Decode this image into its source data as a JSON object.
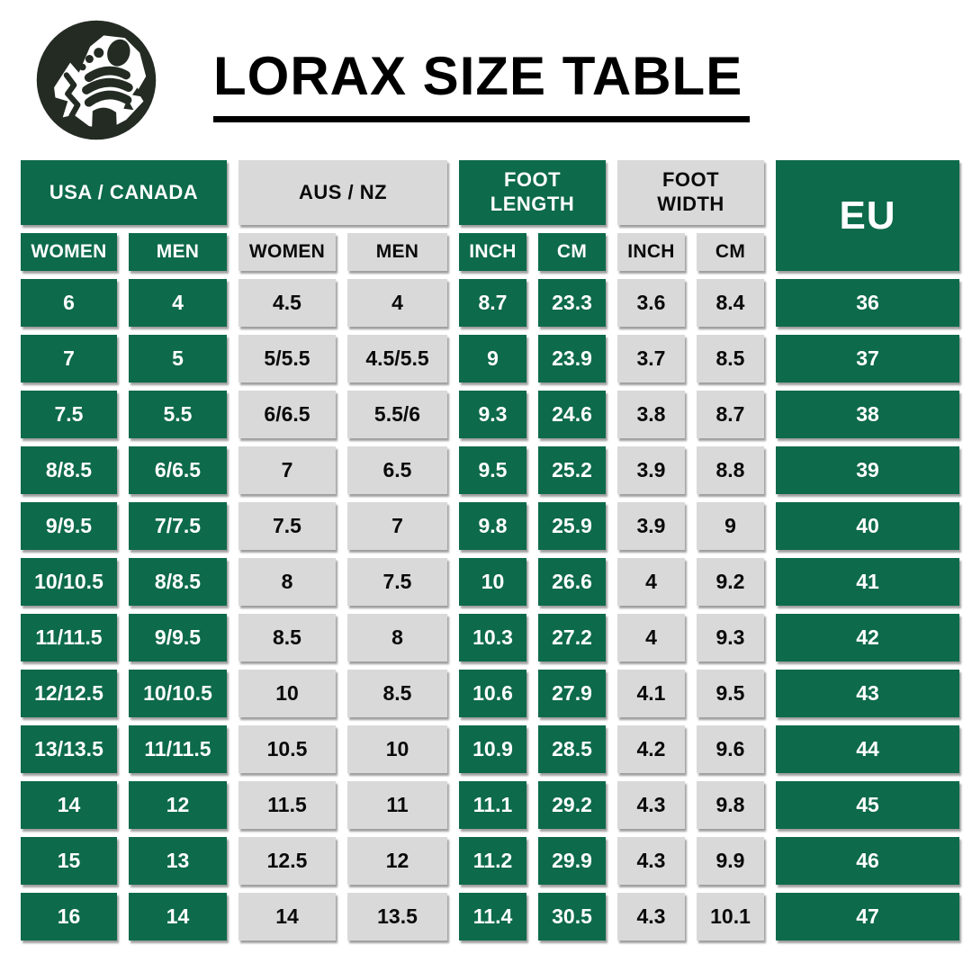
{
  "header": {
    "title": "LORAX SIZE TABLE",
    "logo_icon": "footprint-mountain-icon"
  },
  "colors": {
    "green": "#0D6A4A",
    "light_gray": "#D9D9D9",
    "logo_dark": "#232B23",
    "title_text": "#000000",
    "text_on_green": "#FFFFFF",
    "text_on_gray": "#0A0A0A"
  },
  "table": {
    "groups": [
      {
        "label": "USA / CANADA",
        "style": "green"
      },
      {
        "label": "AUS / NZ",
        "style": "gray"
      },
      {
        "label": "FOOT LENGTH",
        "style": "green"
      },
      {
        "label": "FOOT WIDTH",
        "style": "gray"
      },
      {
        "label": "EU",
        "style": "green"
      }
    ],
    "subheaders": [
      {
        "label": "WOMEN",
        "style": "green"
      },
      {
        "label": "MEN",
        "style": "green"
      },
      {
        "label": "WOMEN",
        "style": "gray"
      },
      {
        "label": "MEN",
        "style": "gray"
      },
      {
        "label": "INCH",
        "style": "green"
      },
      {
        "label": "CM",
        "style": "green"
      },
      {
        "label": "INCH",
        "style": "gray"
      },
      {
        "label": "CM",
        "style": "gray"
      }
    ],
    "column_styles": [
      "green",
      "green",
      "gray",
      "gray",
      "green",
      "green",
      "gray",
      "gray",
      "green"
    ],
    "rows": [
      [
        "6",
        "4",
        "4.5",
        "4",
        "8.7",
        "23.3",
        "3.6",
        "8.4",
        "36"
      ],
      [
        "7",
        "5",
        "5/5.5",
        "4.5/5.5",
        "9",
        "23.9",
        "3.7",
        "8.5",
        "37"
      ],
      [
        "7.5",
        "5.5",
        "6/6.5",
        "5.5/6",
        "9.3",
        "24.6",
        "3.8",
        "8.7",
        "38"
      ],
      [
        "8/8.5",
        "6/6.5",
        "7",
        "6.5",
        "9.5",
        "25.2",
        "3.9",
        "8.8",
        "39"
      ],
      [
        "9/9.5",
        "7/7.5",
        "7.5",
        "7",
        "9.8",
        "25.9",
        "3.9",
        "9",
        "40"
      ],
      [
        "10/10.5",
        "8/8.5",
        "8",
        "7.5",
        "10",
        "26.6",
        "4",
        "9.2",
        "41"
      ],
      [
        "11/11.5",
        "9/9.5",
        "8.5",
        "8",
        "10.3",
        "27.2",
        "4",
        "9.3",
        "42"
      ],
      [
        "12/12.5",
        "10/10.5",
        "10",
        "8.5",
        "10.6",
        "27.9",
        "4.1",
        "9.5",
        "43"
      ],
      [
        "13/13.5",
        "11/11.5",
        "10.5",
        "10",
        "10.9",
        "28.5",
        "4.2",
        "9.6",
        "44"
      ],
      [
        "14",
        "12",
        "11.5",
        "11",
        "11.1",
        "29.2",
        "4.3",
        "9.8",
        "45"
      ],
      [
        "15",
        "13",
        "12.5",
        "12",
        "11.2",
        "29.9",
        "4.3",
        "9.9",
        "46"
      ],
      [
        "16",
        "14",
        "14",
        "13.5",
        "11.4",
        "30.5",
        "4.3",
        "10.1",
        "47"
      ]
    ]
  }
}
